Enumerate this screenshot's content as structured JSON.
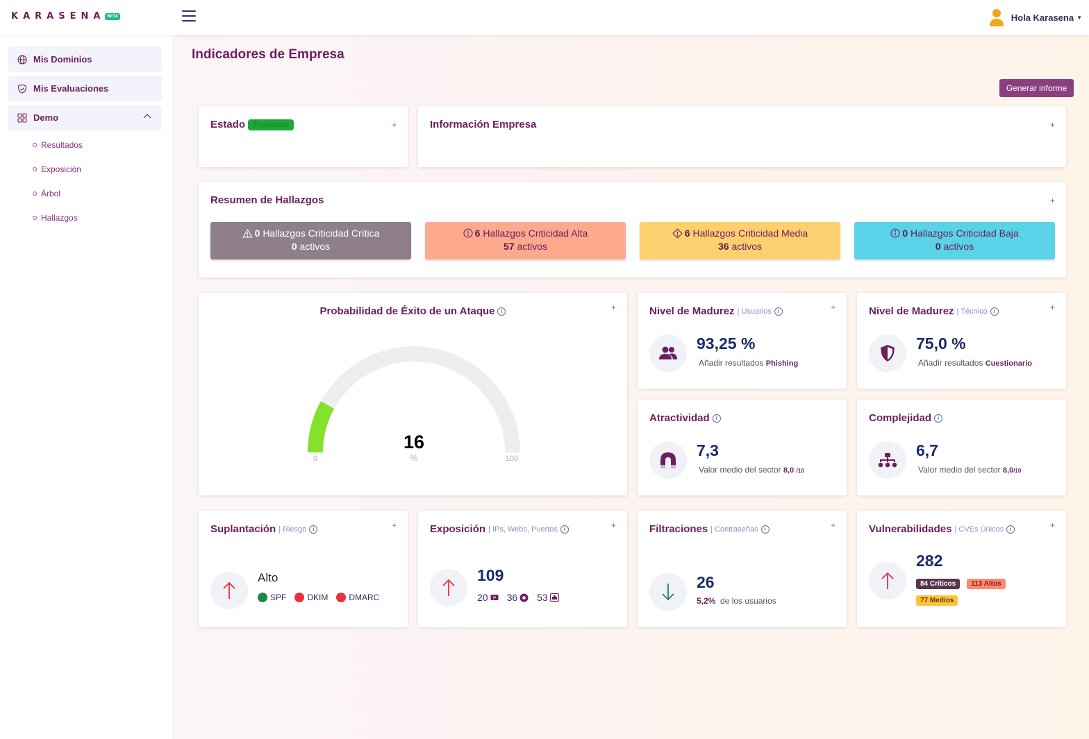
{
  "header": {
    "logo_text": "KARASENA",
    "logo_badge": "BETA",
    "user_greeting": "Hola Karasena"
  },
  "sidebar": {
    "items": [
      {
        "label": "Mis Dominios"
      },
      {
        "label": "Mis Evaluaciones"
      },
      {
        "label": "Demo"
      }
    ],
    "subitems": [
      {
        "label": "Resultados"
      },
      {
        "label": "Exposición"
      },
      {
        "label": "Árbol"
      },
      {
        "label": "Hallazgos"
      }
    ]
  },
  "main": {
    "title": "Indicadores de Empresa",
    "report_button": "Generar informe",
    "estado": {
      "title": "Estado",
      "badge": "Finalizada"
    },
    "info_empresa": {
      "title": "Información Empresa"
    },
    "resumen": {
      "title": "Resumen de Hallazgos",
      "cards": [
        {
          "count": "0",
          "label": "Hallazgos Criticidad Crítica",
          "active_count": "0",
          "active_label": "activos",
          "color": "#8e7f8a"
        },
        {
          "count": "6",
          "label": "Hallazgos Criticidad Alta",
          "active_count": "57",
          "active_label": "activos",
          "color": "#fda98e"
        },
        {
          "count": "6",
          "label": "Hallazgos Criticidad Media",
          "active_count": "36",
          "active_label": "activos",
          "color": "#fdd06f"
        },
        {
          "count": "0",
          "label": "Hallazgos Criticidad Baja",
          "active_count": "0",
          "active_label": "activos",
          "color": "#5ad2e8"
        }
      ]
    },
    "probabilidad": {
      "title": "Probabilidad de Éxito de un Ataque",
      "value": "16",
      "value_num": 16,
      "unit": "%",
      "min": "0",
      "max": "100"
    },
    "madurez_usuarios": {
      "title": "Nivel de Madurez",
      "sub": "| Usuarios",
      "value": "93,25 %",
      "note": "Añadir resultados",
      "note_bold": "Phishing"
    },
    "madurez_tecnico": {
      "title": "Nivel de Madurez",
      "sub": "| Técnico",
      "value": "75,0 %",
      "note": "Añadir resultados",
      "note_bold": "Cuestionario"
    },
    "atractividad": {
      "title": "Atractividad",
      "value": "7,3",
      "note": "Valor medio del sector",
      "note_bold": "8,0",
      "note_small": "/10"
    },
    "complejidad": {
      "title": "Complejidad",
      "value": "6,7",
      "note": "Valor medio del sector",
      "note_bold": "8,0",
      "note_small": "/10"
    },
    "suplantacion": {
      "title": "Suplantación",
      "sub": "| Riesgo",
      "level": "Alto",
      "checks": [
        {
          "label": "SPF",
          "color": "#1a8a4a"
        },
        {
          "label": "DKIM",
          "color": "#e8303e"
        },
        {
          "label": "DMARC",
          "color": "#e8303e"
        }
      ]
    },
    "exposicion": {
      "title": "Exposición",
      "sub": "| IPs, Webs, Puertos",
      "value": "109",
      "items": [
        "20",
        "36",
        "53"
      ]
    },
    "filtraciones": {
      "title": "Filtraciones",
      "sub": "| Contraseñas",
      "value": "26",
      "pct": "5,2%",
      "note": "de los usuarios"
    },
    "vulnerabilidades": {
      "title": "Vulnerabilidades",
      "sub": "| CVEs Únicos",
      "value": "282",
      "tags": [
        {
          "label": "84 Críticos",
          "bg": "#5a3550",
          "fg": "#ffffff"
        },
        {
          "label": "113 Altos",
          "bg": "#fd8a6e",
          "fg": "#8a1a1a"
        },
        {
          "label": "77 Medios",
          "bg": "#fdc23a",
          "fg": "#6b3a00"
        }
      ]
    }
  },
  "colors": {
    "brand": "#6b1f5f",
    "accent": "#8b3f7f",
    "gauge": "#86e02e",
    "value": "#1b2b6b"
  }
}
